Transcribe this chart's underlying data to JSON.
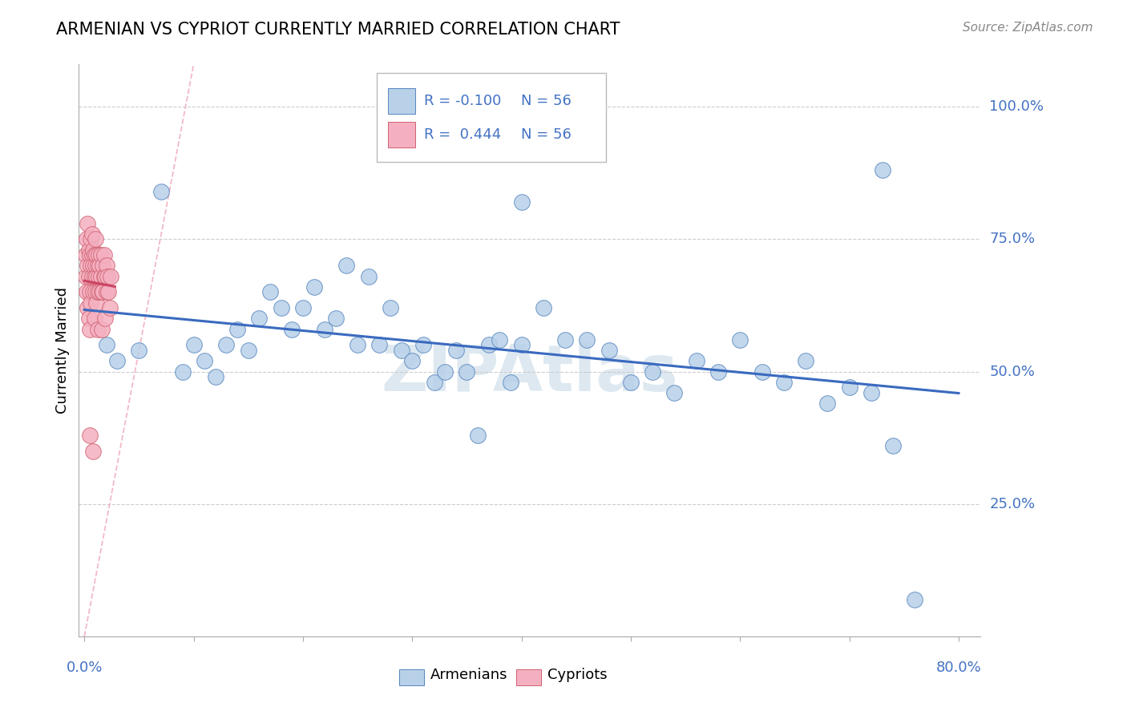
{
  "title": "ARMENIAN VS CYPRIOT CURRENTLY MARRIED CORRELATION CHART",
  "source": "Source: ZipAtlas.com",
  "ylabel": "Currently Married",
  "legend_r_armenian": "-0.100",
  "legend_r_cypriot": "0.444",
  "legend_n": "56",
  "armenian_fill": "#b8d0e8",
  "armenian_edge": "#5585c0",
  "cypriot_fill": "#f4b0c0",
  "cypriot_edge": "#d06070",
  "trend_armenian_color": "#3a6abf",
  "trend_cypriot_color": "#cc4466",
  "diagonal_color": "#f0a8b8",
  "watermark_color": "#dde8f0",
  "label_color": "#4472c4",
  "xlim_max": 0.8,
  "ylim_min": 0.0,
  "ylim_max": 1.08
}
